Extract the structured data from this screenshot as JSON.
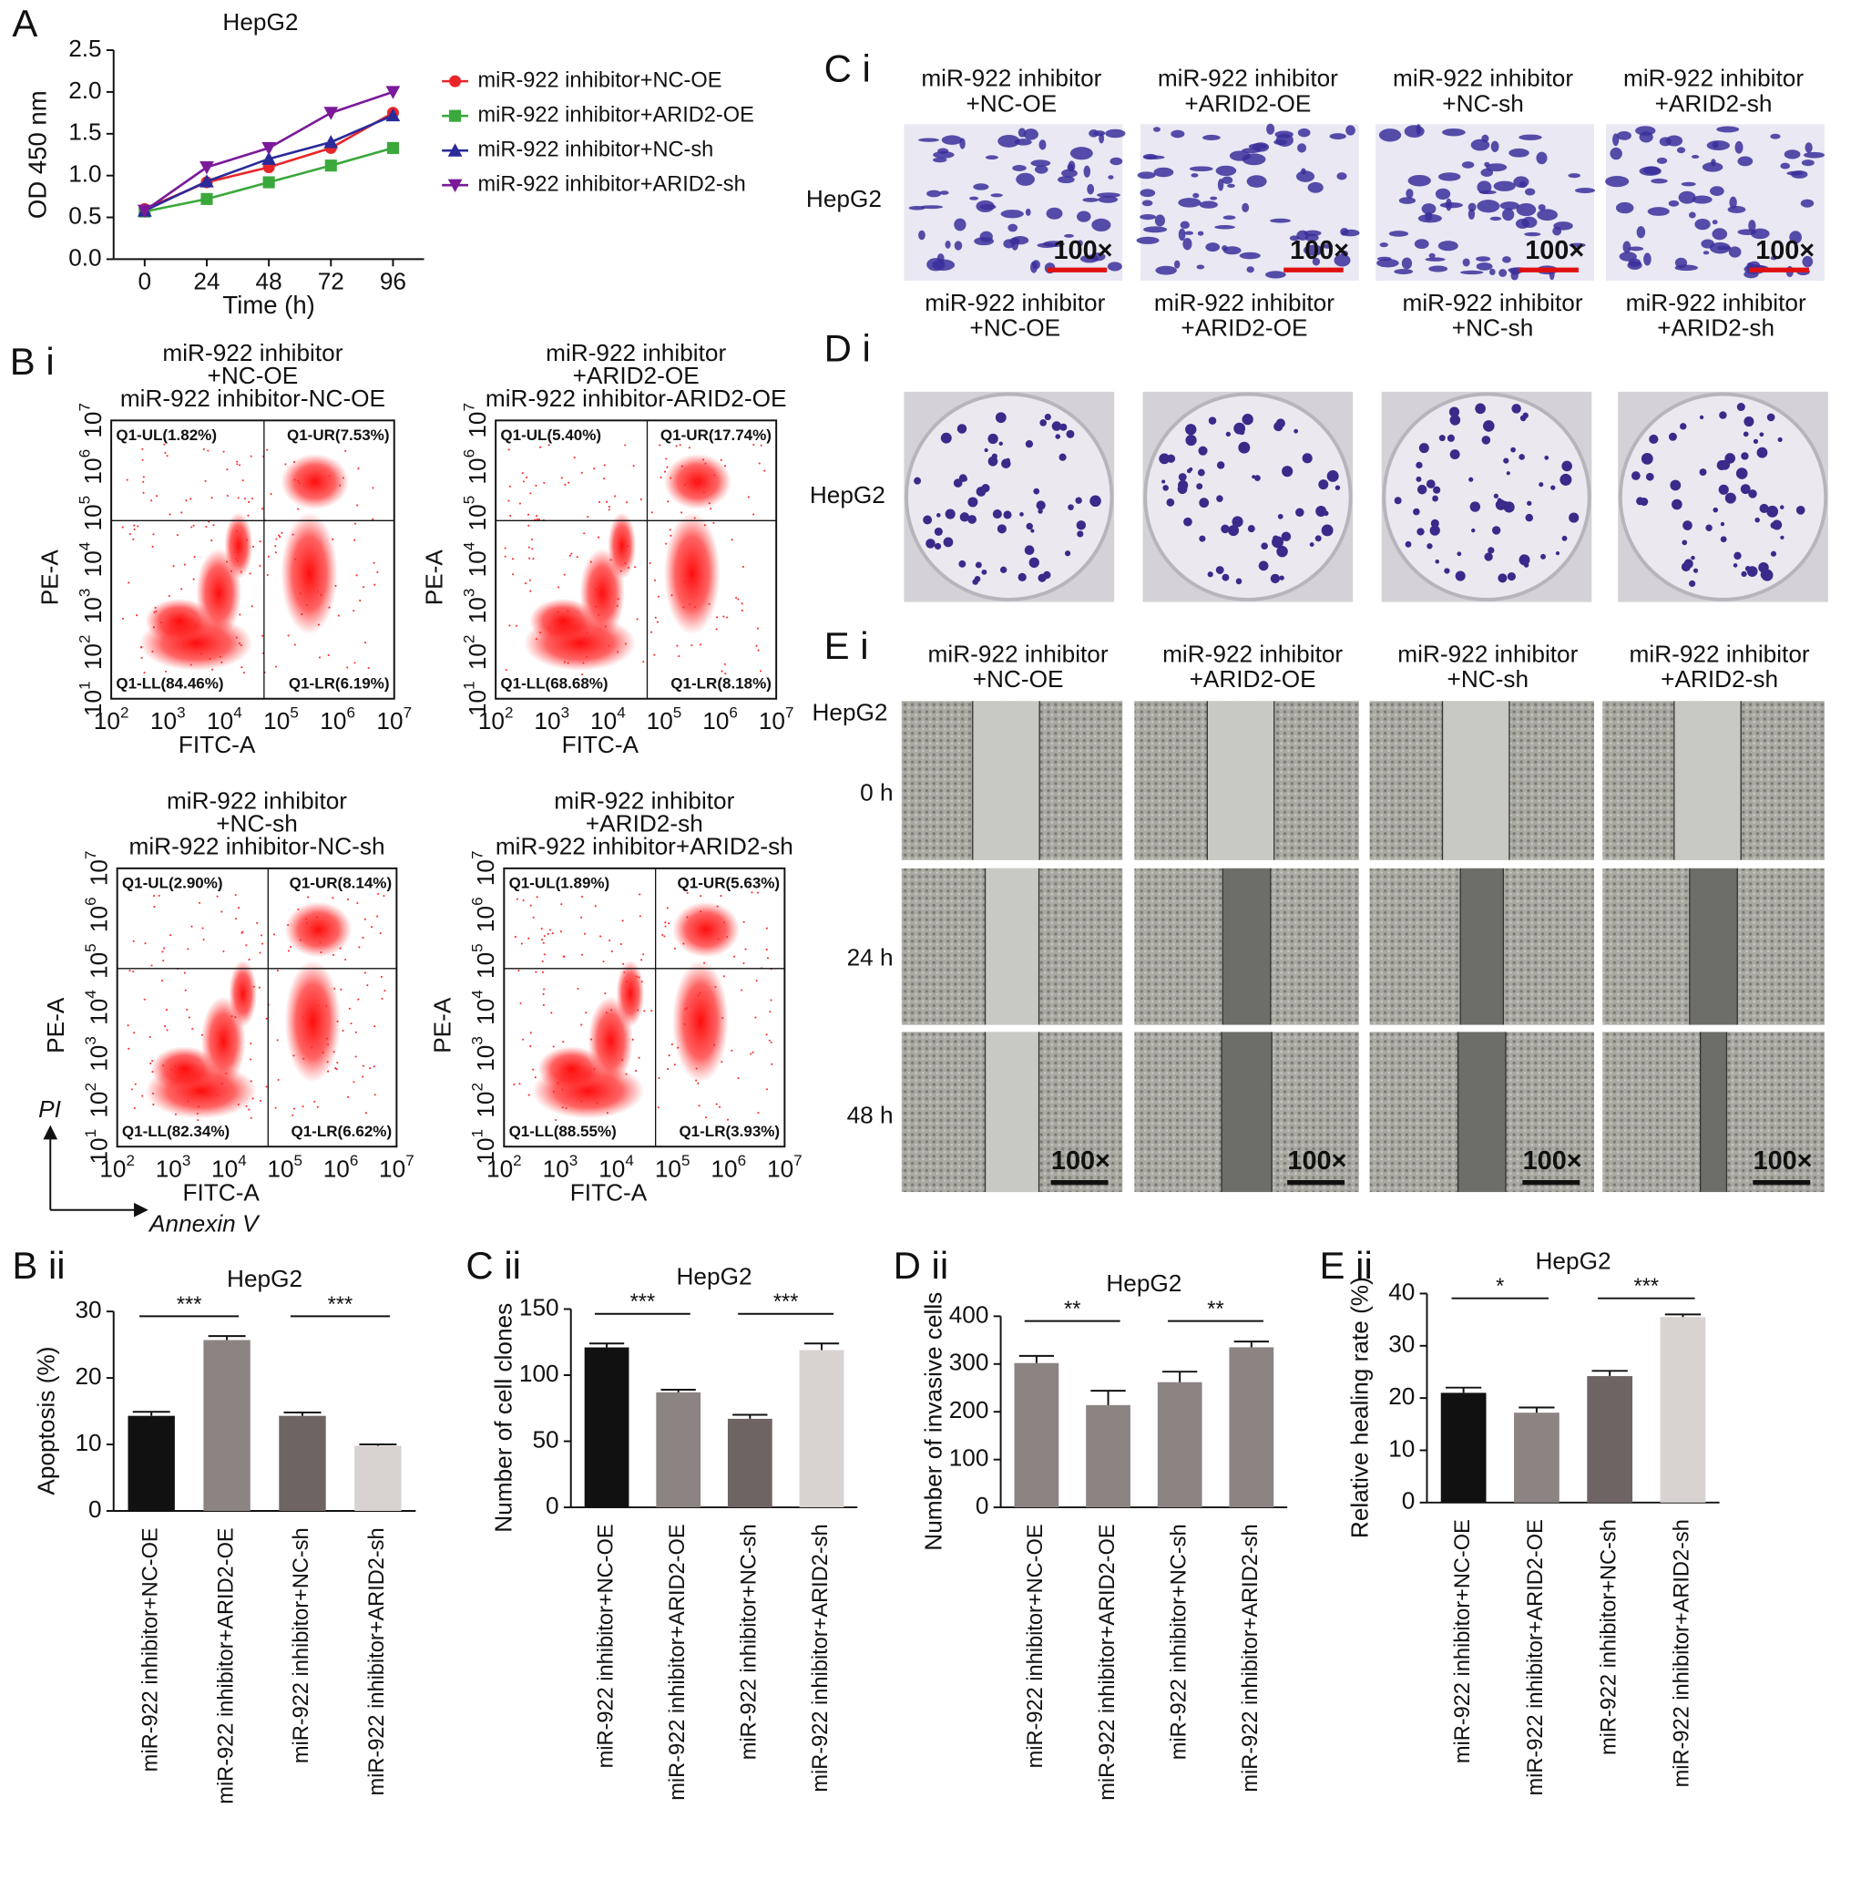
{
  "chart_data": [
    {
      "type": "line",
      "panel": "A",
      "title": "HepG2",
      "x_label": "Time (h)",
      "y_label": "OD 450 nm",
      "x": [
        0,
        24,
        48,
        72,
        96
      ],
      "xlim": [
        -12,
        108
      ],
      "xticks": [
        0,
        24,
        48,
        72,
        96
      ],
      "ylim": [
        0,
        2.5
      ],
      "yticks": [
        {
          "value": 0,
          "label": "0.0"
        },
        0.5,
        {
          "value": 1,
          "label": "1.0"
        },
        1.5,
        {
          "value": 2,
          "label": "2.0"
        },
        2.5
      ],
      "series": [
        {
          "name": "miR-922 inhibitor+NC-OE",
          "color": "#e8262a",
          "marker": "circle",
          "values": [
            0.6,
            0.92,
            1.1,
            1.33,
            1.75
          ]
        },
        {
          "name": "miR-922 inhibitor+ARID2-OE",
          "color": "#3aa83a",
          "marker": "square",
          "values": [
            0.57,
            0.72,
            0.92,
            1.12,
            1.33
          ]
        },
        {
          "name": "miR-922 inhibitor+NC-sh",
          "color": "#2a2a9a",
          "marker": "triangle",
          "values": [
            0.58,
            0.93,
            1.2,
            1.4,
            1.72
          ]
        },
        {
          "name": "miR-922 inhibitor+ARID2-sh",
          "color": "#7a1a9a",
          "marker": "triangle-down",
          "values": [
            0.58,
            1.1,
            1.33,
            1.75,
            2.0
          ]
        }
      ]
    },
    {
      "type": "bar",
      "panel": "B ii",
      "title": "HepG2",
      "y_label": "Apoptosis (%)",
      "categories": [
        "miR-922 inhibitor+NC-OE",
        "miR-922 inhibitor+ARID2-OE",
        "miR-922 inhibitor+NC-sh",
        "miR-922 inhibitor+ARID2-sh"
      ],
      "colors": [
        "#111111",
        "#8c8383",
        "#6e6464",
        "#d8d2d0"
      ],
      "values": [
        14.3,
        25.7,
        14.3,
        9.8
      ],
      "errors": [
        0.6,
        0.6,
        0.5,
        0.2
      ],
      "ylim": [
        0,
        30
      ],
      "yticks": [
        0,
        10,
        20,
        30
      ],
      "significance": [
        "***",
        "***"
      ]
    },
    {
      "type": "bar",
      "panel": "C ii",
      "title": "HepG2",
      "y_label": "Number of cell clones",
      "categories": [
        "miR-922 inhibitor+NC-OE",
        "miR-922 inhibitor+ARID2-OE",
        "miR-922 inhibitor+NC-sh",
        "miR-922 inhibitor+ARID2-sh"
      ],
      "colors": [
        "#111111",
        "#8c8383",
        "#6e6464",
        "#d8d2d0"
      ],
      "values": [
        121,
        87,
        67,
        119
      ],
      "errors": [
        3,
        2,
        3,
        5
      ],
      "ylim": [
        0,
        150
      ],
      "yticks": [
        0,
        50,
        100,
        150
      ],
      "significance": [
        "***",
        "***"
      ]
    },
    {
      "type": "bar",
      "panel": "D ii",
      "title": "HepG2",
      "y_label": "Number of invasive cells",
      "categories": [
        "miR-922 inhibitor+NC-OE",
        "miR-922 inhibitor+ARID2-OE",
        "miR-922 inhibitor+NC-sh",
        "miR-922 inhibitor+ARID2-sh"
      ],
      "colors": [
        "#8c8383",
        "#8c8383",
        "#8c8383",
        "#8c8383"
      ],
      "values": [
        302,
        214,
        262,
        335
      ],
      "errors": [
        15,
        30,
        22,
        12
      ],
      "ylim": [
        0,
        400
      ],
      "yticks": [
        0,
        100,
        200,
        300,
        400
      ],
      "significance": [
        "**",
        "**"
      ]
    },
    {
      "type": "bar",
      "panel": "E ii",
      "title": "HepG2",
      "y_label": "Relative healing rate (%)",
      "categories": [
        "miR-922 inhibitor+NC-OE",
        "miR-922 inhibitor+ARID2-OE",
        "miR-922 inhibitor+NC-sh",
        "miR-922 inhibitor+ARID2-sh"
      ],
      "colors": [
        "#111111",
        "#8c8383",
        "#6e6464",
        "#d8d2d0"
      ],
      "values": [
        21,
        17.2,
        24.2,
        35.5
      ],
      "errors": [
        1,
        1,
        1,
        0.5
      ],
      "ylim": [
        0,
        40
      ],
      "yticks": [
        0,
        10,
        20,
        30,
        40
      ],
      "significance": [
        "*",
        "***"
      ]
    }
  ],
  "flow": {
    "panel": "B i",
    "tick_base": "10",
    "xtick_exponents": [
      "2",
      "3",
      "4",
      "5",
      "6",
      "7"
    ],
    "ytick_exponents": [
      "1",
      "2",
      "3",
      "4",
      "5",
      "6",
      "7"
    ],
    "y_arrow": "PI",
    "x_arrow": "Annexin V",
    "plots": [
      {
        "title": [
          "miR-922 inhibitor",
          "+NC-OE",
          "miR-922 inhibitor-NC-OE"
        ],
        "xlabel": "FITC-A",
        "ylabel": "PE-A",
        "quadrants": {
          "UL": "Q1-UL(1.82%)",
          "UR": "Q1-UR(7.53%)",
          "LL": "Q1-LL(84.46%)",
          "LR": "Q1-LR(6.19%)"
        }
      },
      {
        "title": [
          "miR-922 inhibitor",
          "+ARID2-OE",
          "miR-922 inhibitor-ARID2-OE"
        ],
        "xlabel": "FITC-A",
        "ylabel": "PE-A",
        "quadrants": {
          "UL": "Q1-UL(5.40%)",
          "UR": "Q1-UR(17.74%)",
          "LL": "Q1-LL(68.68%)",
          "LR": "Q1-LR(8.18%)"
        }
      },
      {
        "title": [
          "miR-922 inhibitor",
          "+NC-sh",
          "miR-922 inhibitor-NC-sh"
        ],
        "xlabel": "FITC-A",
        "ylabel": "PE-A",
        "quadrants": {
          "UL": "Q1-UL(2.90%)",
          "UR": "Q1-UR(8.14%)",
          "LL": "Q1-LL(82.34%)",
          "LR": "Q1-LR(6.62%)"
        }
      },
      {
        "title": [
          "miR-922 inhibitor",
          "+ARID2-sh",
          "miR-922 inhibitor+ARID2-sh"
        ],
        "xlabel": "FITC-A",
        "ylabel": "PE-A",
        "quadrants": {
          "UL": "Q1-UL(1.89%)",
          "UR": "Q1-UR(5.63%)",
          "LL": "Q1-LL(88.55%)",
          "LR": "Q1-LR(3.93%)"
        }
      }
    ]
  },
  "invasion": {
    "panel": "C i",
    "row_label": "HepG2",
    "headers": [
      [
        "miR-922 inhibitor",
        "+NC-OE"
      ],
      [
        "miR-922 inhibitor",
        "+ARID2-OE"
      ],
      [
        "miR-922 inhibitor",
        "+NC-sh"
      ],
      [
        "miR-922 inhibitor",
        "+ARID2-sh"
      ]
    ],
    "scale_labels": [
      "100×",
      "100×",
      "100×",
      "100×"
    ]
  },
  "colony": {
    "panel": "D i",
    "row_label": "HepG2",
    "headers": [
      [
        "miR-922 inhibitor",
        "+NC-OE"
      ],
      [
        "miR-922 inhibitor",
        "+ARID2-OE"
      ],
      [
        "miR-922 inhibitor",
        "+NC-sh"
      ],
      [
        "miR-922 inhibitor",
        "+ARID2-sh"
      ]
    ]
  },
  "wound": {
    "panel": "E i",
    "cell_line": "HepG2",
    "rows": [
      "0 h",
      "24 h",
      "48 h"
    ],
    "headers": [
      [
        "miR-922 inhibitor",
        "+NC-OE"
      ],
      [
        "miR-922 inhibitor",
        "+ARID2-OE"
      ],
      [
        "miR-922 inhibitor",
        "+NC-sh"
      ],
      [
        "miR-922 inhibitor",
        "+ARID2-sh"
      ]
    ],
    "scale_labels": [
      "100×",
      "100×",
      "100×",
      "100×"
    ]
  }
}
